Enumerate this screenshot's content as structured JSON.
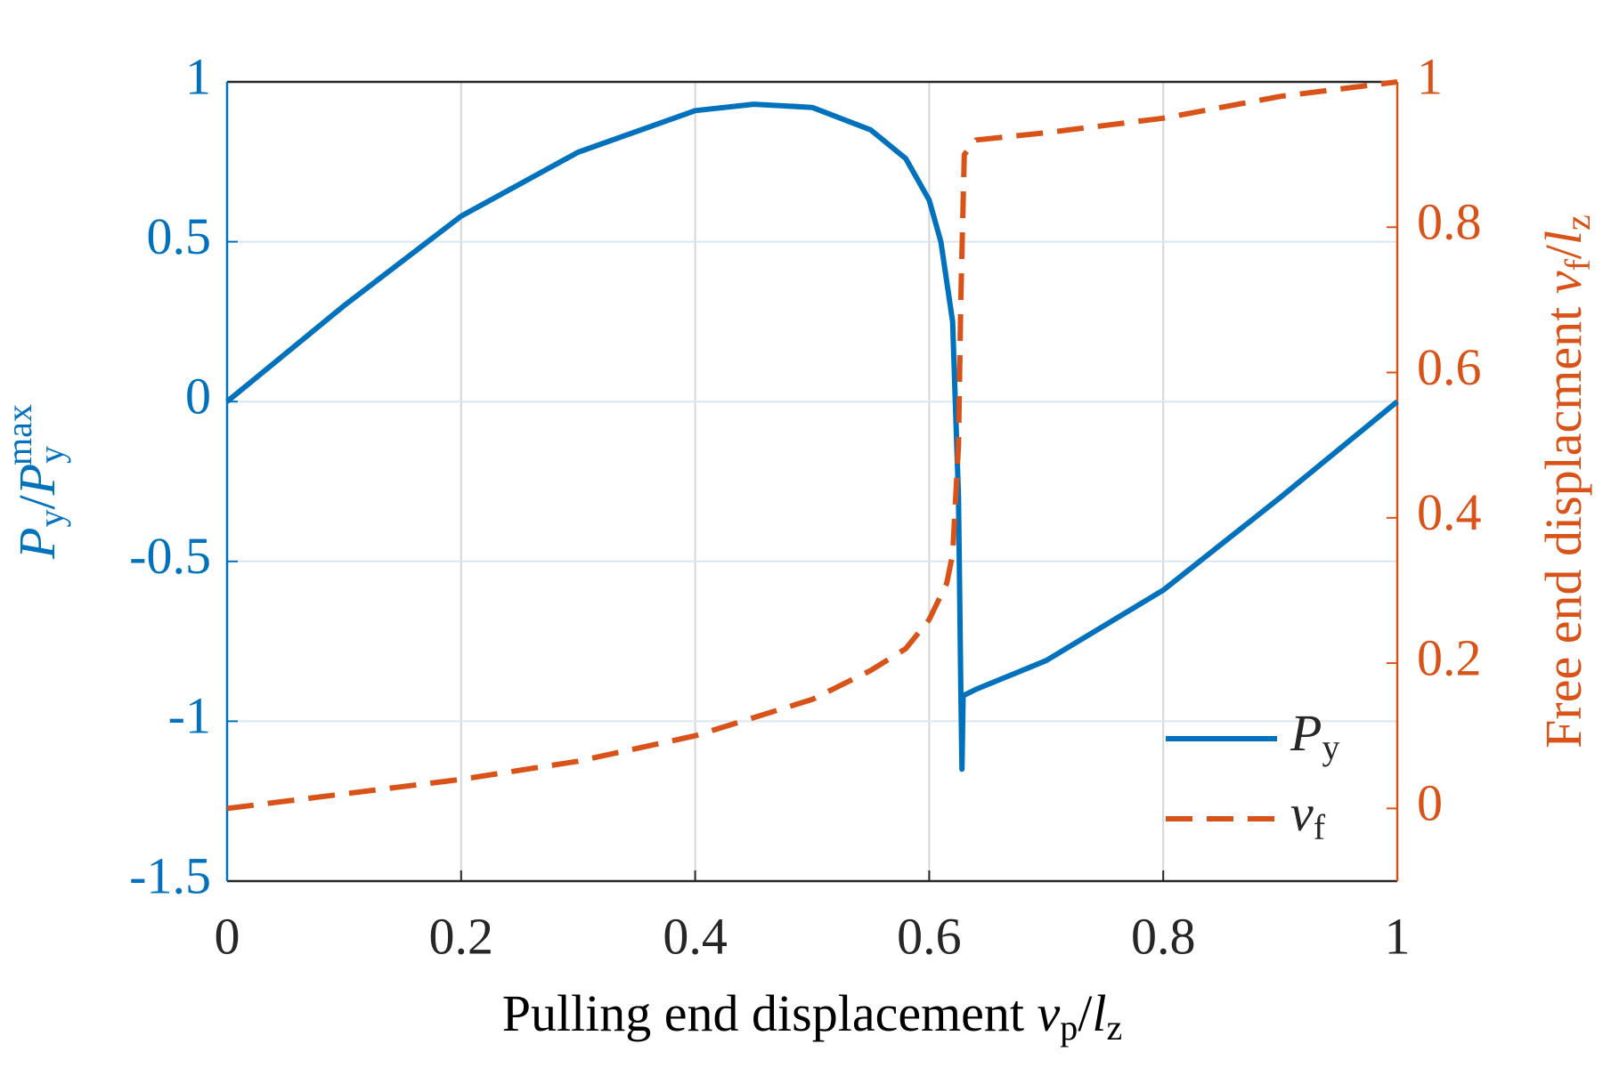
{
  "chart_data": {
    "type": "line",
    "xlabel": [
      "Pulling end displacement ",
      "v",
      "p",
      "/",
      "l",
      "z"
    ],
    "ylabel": [
      "P",
      "y",
      "/",
      "P",
      "y",
      "max"
    ],
    "y2label": [
      "Free end displacment ",
      "v",
      "f",
      "/",
      "l",
      "z"
    ],
    "xlim": [
      0,
      1
    ],
    "xticks": [
      0,
      0.2,
      0.4,
      0.6,
      0.8,
      1
    ],
    "ylim": [
      -1.5,
      1
    ],
    "yticks": [
      -1.5,
      -1,
      -0.5,
      0,
      0.5,
      1
    ],
    "y2lim": [
      -0.1,
      1
    ],
    "y2ticks": [
      0,
      0.2,
      0.4,
      0.6,
      0.8,
      1
    ],
    "grid": true,
    "legend": "lower right",
    "ycolor": "#0072bd",
    "y2color": "#d95319",
    "series": [
      {
        "name": [
          "P",
          "y"
        ],
        "color": "#0072bd",
        "dash": false,
        "x": [
          0,
          0.1,
          0.2,
          0.3,
          0.4,
          0.45,
          0.5,
          0.55,
          0.58,
          0.6,
          0.61,
          0.62,
          0.625,
          0.627,
          0.628,
          0.629,
          0.64,
          0.7,
          0.8,
          0.9,
          1
        ],
        "values": [
          0,
          0.3,
          0.58,
          0.78,
          0.91,
          0.93,
          0.92,
          0.85,
          0.76,
          0.63,
          0.5,
          0.25,
          -0.3,
          -0.9,
          -1.15,
          -0.92,
          -0.9,
          -0.81,
          -0.59,
          -0.3,
          0
        ]
      },
      {
        "name": [
          "v",
          "f"
        ],
        "color": "#d95319",
        "dash": true,
        "axis": "y2",
        "x": [
          0,
          0.1,
          0.2,
          0.3,
          0.4,
          0.5,
          0.55,
          0.58,
          0.6,
          0.615,
          0.62,
          0.625,
          0.627,
          0.63,
          0.64,
          0.7,
          0.8,
          0.9,
          1
        ],
        "values": [
          0,
          0.02,
          0.04,
          0.065,
          0.1,
          0.15,
          0.19,
          0.22,
          0.26,
          0.31,
          0.35,
          0.5,
          0.7,
          0.9,
          0.92,
          0.93,
          0.95,
          0.98,
          1
        ]
      }
    ]
  }
}
